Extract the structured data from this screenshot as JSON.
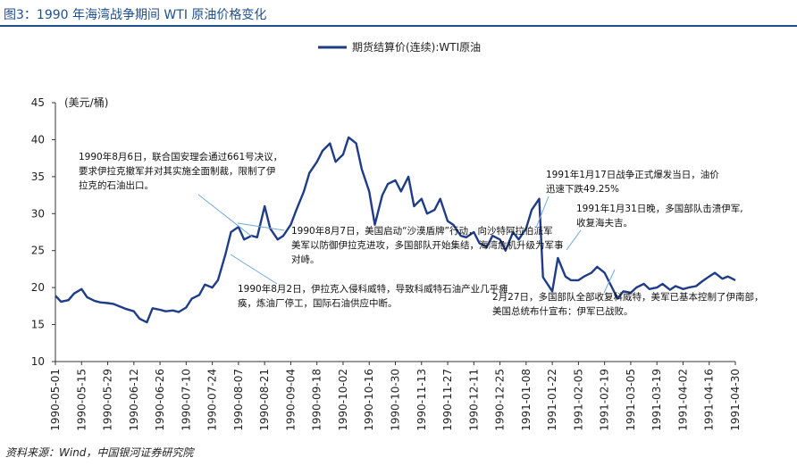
{
  "header": {
    "title": "图3：1990 年海湾战争期间 WTI 原油价格变化"
  },
  "footer": {
    "source": "资料来源：Wind，中国银河证券研究院"
  },
  "chart_data": {
    "type": "line",
    "title": "",
    "ylabel": "(美元/桶)",
    "xlabel": "",
    "ylim": [
      10,
      45
    ],
    "yticks": [
      10,
      15,
      20,
      25,
      30,
      35,
      40,
      45
    ],
    "legend": {
      "position": "top-center",
      "entries": [
        "期货结算价(连续):WTI原油"
      ]
    },
    "x_tick_labels": [
      "1990-05-01",
      "1990-05-15",
      "1990-05-29",
      "1990-06-12",
      "1990-06-26",
      "1990-07-10",
      "1990-07-24",
      "1990-08-07",
      "1990-08-21",
      "1990-09-04",
      "1990-09-18",
      "1990-10-02",
      "1990-10-16",
      "1990-10-30",
      "1990-11-13",
      "1990-11-27",
      "1990-12-11",
      "1990-12-25",
      "1991-01-08",
      "1991-01-22",
      "1991-02-05",
      "1991-02-19",
      "1991-03-05",
      "1991-03-19",
      "1991-04-02",
      "1991-04-16",
      "1991-04-30"
    ],
    "series": [
      {
        "name": "期货结算价(连续):WTI原油",
        "color": "#1f3c88",
        "x": [
          "1990-05-01",
          "1990-05-04",
          "1990-05-08",
          "1990-05-11",
          "1990-05-15",
          "1990-05-18",
          "1990-05-22",
          "1990-05-25",
          "1990-05-29",
          "1990-06-01",
          "1990-06-05",
          "1990-06-08",
          "1990-06-12",
          "1990-06-15",
          "1990-06-19",
          "1990-06-22",
          "1990-06-26",
          "1990-06-29",
          "1990-07-03",
          "1990-07-06",
          "1990-07-10",
          "1990-07-13",
          "1990-07-17",
          "1990-07-20",
          "1990-07-24",
          "1990-07-27",
          "1990-07-31",
          "1990-08-03",
          "1990-08-07",
          "1990-08-10",
          "1990-08-14",
          "1990-08-17",
          "1990-08-21",
          "1990-08-24",
          "1990-08-28",
          "1990-08-31",
          "1990-09-04",
          "1990-09-07",
          "1990-09-11",
          "1990-09-14",
          "1990-09-18",
          "1990-09-21",
          "1990-09-25",
          "1990-09-28",
          "1990-10-02",
          "1990-10-05",
          "1990-10-09",
          "1990-10-12",
          "1990-10-16",
          "1990-10-19",
          "1990-10-23",
          "1990-10-26",
          "1990-10-30",
          "1990-11-02",
          "1990-11-06",
          "1990-11-09",
          "1990-11-13",
          "1990-11-16",
          "1990-11-20",
          "1990-11-23",
          "1990-11-27",
          "1990-11-30",
          "1990-12-04",
          "1990-12-07",
          "1990-12-11",
          "1990-12-14",
          "1990-12-18",
          "1990-12-21",
          "1990-12-25",
          "1990-12-28",
          "1991-01-01",
          "1991-01-04",
          "1991-01-08",
          "1991-01-11",
          "1991-01-15",
          "1991-01-17",
          "1991-01-22",
          "1991-01-25",
          "1991-01-29",
          "1991-02-01",
          "1991-02-05",
          "1991-02-08",
          "1991-02-12",
          "1991-02-15",
          "1991-02-19",
          "1991-02-22",
          "1991-02-26",
          "1991-03-01",
          "1991-03-05",
          "1991-03-08",
          "1991-03-12",
          "1991-03-15",
          "1991-03-19",
          "1991-03-22",
          "1991-03-26",
          "1991-03-29",
          "1991-04-02",
          "1991-04-05",
          "1991-04-09",
          "1991-04-12",
          "1991-04-16",
          "1991-04-19",
          "1991-04-23",
          "1991-04-26",
          "1991-04-30"
        ],
        "values": [
          18.9,
          18.1,
          18.3,
          19.2,
          19.8,
          18.7,
          18.2,
          18.0,
          17.9,
          17.8,
          17.4,
          17.1,
          16.8,
          15.8,
          15.3,
          17.2,
          17.0,
          16.8,
          16.9,
          16.7,
          17.3,
          18.5,
          19.0,
          20.4,
          20.0,
          21.0,
          24.5,
          27.5,
          28.2,
          26.5,
          27.0,
          26.8,
          31.0,
          28.0,
          26.5,
          27.0,
          28.5,
          30.5,
          33.0,
          35.5,
          37.0,
          38.5,
          39.5,
          37.0,
          38.0,
          40.3,
          39.5,
          36.0,
          33.0,
          28.5,
          32.5,
          34.0,
          34.5,
          33.0,
          35.0,
          31.0,
          32.0,
          30.0,
          30.5,
          32.0,
          29.0,
          28.5,
          27.0,
          26.8,
          27.5,
          26.0,
          25.5,
          27.0,
          26.5,
          25.0,
          27.5,
          26.5,
          28.0,
          30.5,
          32.0,
          21.4,
          19.5,
          24.0,
          21.5,
          21.0,
          21.0,
          21.5,
          22.0,
          22.8,
          22.0,
          20.5,
          18.5,
          19.5,
          19.3,
          20.0,
          20.5,
          19.8,
          20.0,
          20.5,
          19.7,
          20.2,
          19.8,
          20.0,
          20.2,
          20.8,
          21.5,
          22.0,
          21.2,
          21.5,
          21.0
        ]
      }
    ],
    "annotations": [
      {
        "id": "a1",
        "lines": [
          "1990年8月6日，联合国安理会通过661号决议，",
          "要求伊拉克撤军并对其实施全面制裁，限制了伊",
          "拉克的石油出口。"
        ]
      },
      {
        "id": "a2",
        "lines": [
          "1990年8月7日，美国启动“沙漠盾牌”行动，向沙特阿拉伯派军",
          "美军以防御伊拉克进攻，多国部队开始集结，海湾危机升级为军事",
          "对峙。"
        ]
      },
      {
        "id": "a3",
        "lines": [
          "1990年8月2日，伊拉克入侵科威特，导致科威特石油产业几乎瘫",
          "痪，炼油厂停工，国际石油供应中断。"
        ]
      },
      {
        "id": "a4",
        "lines": [
          "1991年1月17日战争正式爆发当日，油价",
          "迅速下跌49.25%"
        ]
      },
      {
        "id": "a5",
        "lines": [
          "1991年1月31日晚，多国部队击溃伊军,",
          "收复海夫吉。"
        ]
      },
      {
        "id": "a6",
        "lines": [
          "2月27日，多国部队全部收复科威特，美军已基本控制了伊南部，",
          "美国总统布什宣布：伊军已战败。"
        ]
      }
    ]
  }
}
